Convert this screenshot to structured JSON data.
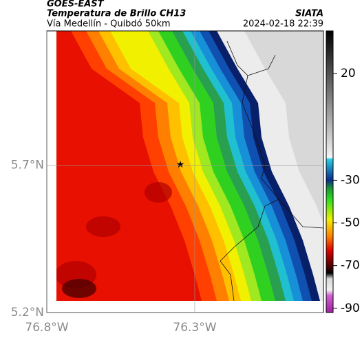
{
  "header": {
    "satellite": "GOES-EAST",
    "title": "Temperatura de Brillo CH13",
    "subtitle": "Vía Medellín - Quibdó 50km",
    "source": "SIATA",
    "datetime": "2024-02-18 22:39"
  },
  "map": {
    "lat_ticks": [
      {
        "value": 5.7,
        "label": "5.7°N"
      },
      {
        "value": 5.2,
        "label": "5.2°N"
      }
    ],
    "lon_ticks": [
      {
        "value": -76.8,
        "label": "76.8°W"
      },
      {
        "value": -76.3,
        "label": "76.3°W"
      }
    ],
    "lat_range": [
      5.2,
      6.155
    ],
    "lon_range": [
      -76.8,
      -75.865
    ]
  },
  "colorbar": {
    "clim": [
      -92,
      40
    ],
    "ticks": [
      20,
      -30,
      -50,
      -70,
      -90
    ]
  }
}
